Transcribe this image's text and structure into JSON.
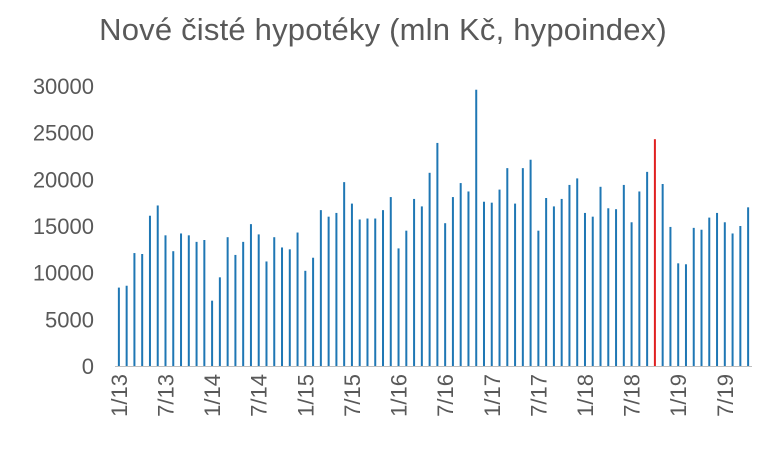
{
  "chart_data": {
    "type": "bar",
    "title": "Nové čisté hypotéky (mln Kč, hypoindex)",
    "xlabel": "",
    "ylabel": "",
    "ylim": [
      0,
      30000
    ],
    "yticks": [
      0,
      5000,
      10000,
      15000,
      20000,
      25000,
      30000
    ],
    "x_tick_labels": [
      "1/13",
      "7/13",
      "1/14",
      "7/14",
      "1/15",
      "7/15",
      "1/16",
      "7/16",
      "1/17",
      "7/17",
      "1/18",
      "7/18",
      "1/19",
      "7/19"
    ],
    "categories": [
      "1/13",
      "2/13",
      "3/13",
      "4/13",
      "5/13",
      "6/13",
      "7/13",
      "8/13",
      "9/13",
      "10/13",
      "11/13",
      "12/13",
      "1/14",
      "2/14",
      "3/14",
      "4/14",
      "5/14",
      "6/14",
      "7/14",
      "8/14",
      "9/14",
      "10/14",
      "11/14",
      "12/14",
      "1/15",
      "2/15",
      "3/15",
      "4/15",
      "5/15",
      "6/15",
      "7/15",
      "8/15",
      "9/15",
      "10/15",
      "11/15",
      "12/15",
      "1/16",
      "2/16",
      "3/16",
      "4/16",
      "5/16",
      "6/16",
      "7/16",
      "8/16",
      "9/16",
      "10/16",
      "11/16",
      "12/16",
      "1/17",
      "2/17",
      "3/17",
      "4/17",
      "5/17",
      "6/17",
      "7/17",
      "8/17",
      "9/17",
      "10/17",
      "11/17",
      "12/17",
      "1/18",
      "2/18",
      "3/18",
      "4/18",
      "5/18",
      "6/18",
      "7/18",
      "8/18",
      "9/18",
      "10/18",
      "11/18",
      "12/18",
      "1/19",
      "2/19",
      "3/19",
      "4/19",
      "5/19",
      "6/19",
      "7/19",
      "8/19",
      "9/19",
      "10/19"
    ],
    "values": [
      8400,
      8600,
      12100,
      12000,
      16100,
      17200,
      14000,
      12300,
      14200,
      14000,
      13300,
      13500,
      7000,
      9500,
      13800,
      11900,
      13300,
      15200,
      14100,
      11200,
      13800,
      12700,
      12500,
      14300,
      10200,
      11600,
      16700,
      16000,
      16400,
      19700,
      17400,
      15700,
      15800,
      15800,
      16700,
      18100,
      12600,
      14500,
      17900,
      17100,
      20700,
      23900,
      15300,
      18100,
      19600,
      18700,
      29600,
      17600,
      17500,
      18900,
      21200,
      17400,
      21200,
      22100,
      14500,
      18000,
      17100,
      17900,
      19400,
      20100,
      16400,
      16000,
      19200,
      16900,
      16800,
      19400,
      15400,
      18700,
      20800,
      24300,
      19500,
      14900,
      11000,
      10900,
      14800,
      14600,
      15900,
      16400,
      15400,
      14200,
      15000,
      17000
    ],
    "bar_color": "#1f77b4",
    "highlight_index": 69,
    "highlight_color": "#e02020",
    "grid": false,
    "legend": "none"
  }
}
